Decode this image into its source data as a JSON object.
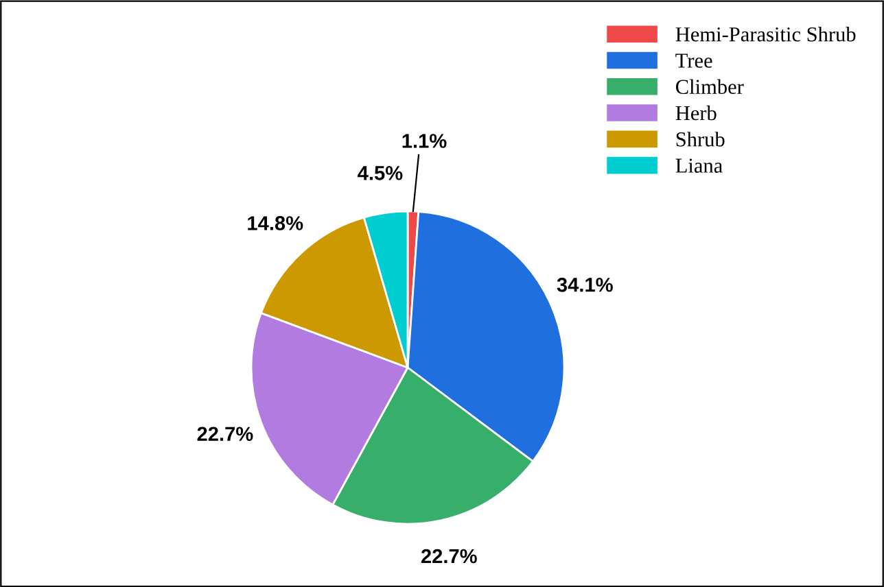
{
  "chart_data": {
    "type": "pie",
    "categories": [
      "Hemi-Parasitic Shrub",
      "Tree",
      "Climber",
      "Herb",
      "Shrub",
      "Liana"
    ],
    "values": [
      1.1,
      34.1,
      22.7,
      22.7,
      14.8,
      4.5
    ],
    "value_labels": [
      "1.1%",
      "34.1%",
      "22.7%",
      "22.7%",
      "14.8%",
      "4.5%"
    ],
    "colors": [
      "#ee4848",
      "#1f6fde",
      "#38ae6b",
      "#b27be0",
      "#cc9a00",
      "#00cdd0"
    ],
    "legend": "top right"
  }
}
